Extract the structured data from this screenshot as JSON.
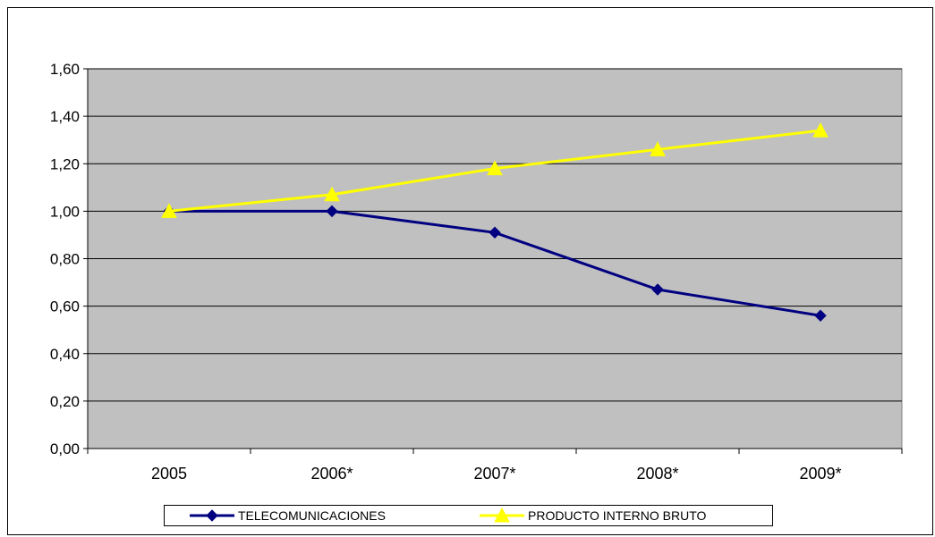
{
  "chart_data": {
    "type": "line",
    "title": "",
    "xlabel": "",
    "ylabel": "",
    "categories": [
      "2005",
      "2006*",
      "2007*",
      "2008*",
      "2009*"
    ],
    "ylim": [
      0,
      1.6
    ],
    "y_ticks": [
      "0,00",
      "0,20",
      "0,40",
      "0,60",
      "0,80",
      "1,00",
      "1,20",
      "1,40",
      "1,60"
    ],
    "grid": true,
    "legend_position": "bottom",
    "plot_background": "#c0c0c0",
    "series": [
      {
        "name": "TELECOMUNICACIONES",
        "values": [
          1.0,
          1.0,
          0.91,
          0.67,
          0.56
        ],
        "color": "#000080",
        "marker": "diamond"
      },
      {
        "name": "PRODUCTO INTERNO BRUTO",
        "values": [
          1.0,
          1.07,
          1.18,
          1.26,
          1.34
        ],
        "color": "#ffff00",
        "marker": "triangle"
      }
    ]
  }
}
